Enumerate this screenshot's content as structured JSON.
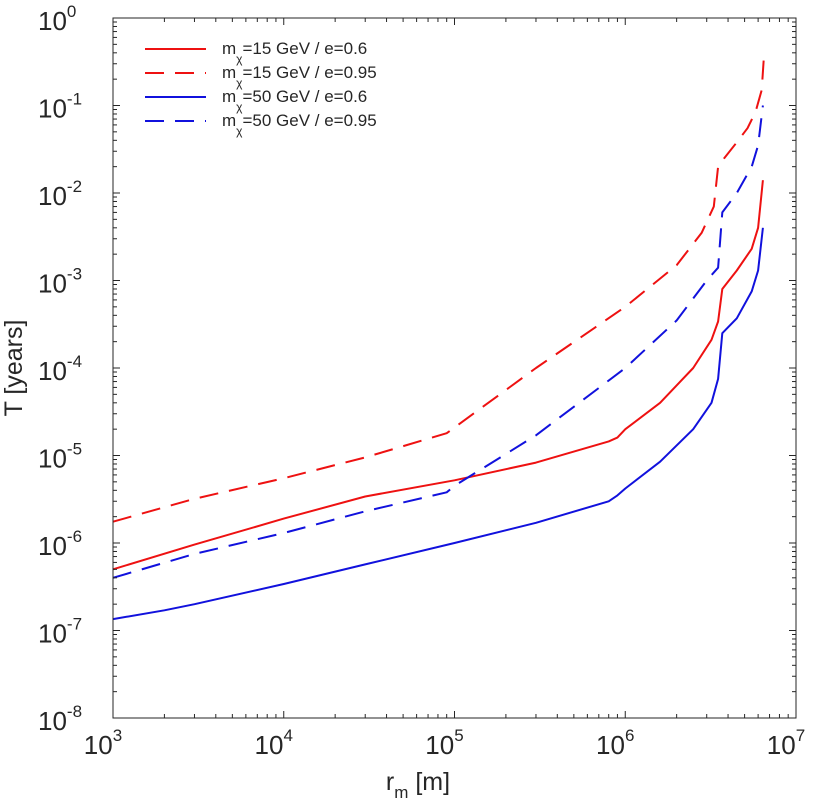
{
  "chart_data": {
    "type": "line",
    "title": "",
    "xlabel": "r",
    "xlabel_sub": "m",
    "xlabel_unit": "[m]",
    "ylabel": "T [years]",
    "xscale": "log",
    "yscale": "log",
    "xlim": [
      1000,
      10000000
    ],
    "ylim": [
      1e-08,
      1
    ],
    "x_ticks": [
      {
        "base": "10",
        "exp": "3",
        "value": 1000
      },
      {
        "base": "10",
        "exp": "4",
        "value": 10000
      },
      {
        "base": "10",
        "exp": "5",
        "value": 100000
      },
      {
        "base": "10",
        "exp": "6",
        "value": 1000000
      },
      {
        "base": "10",
        "exp": "7",
        "value": 10000000
      }
    ],
    "y_ticks": [
      {
        "base": "10",
        "exp": "0",
        "value": 1
      },
      {
        "base": "10",
        "exp": "-1",
        "value": 0.1
      },
      {
        "base": "10",
        "exp": "-2",
        "value": 0.01
      },
      {
        "base": "10",
        "exp": "-3",
        "value": 0.001
      },
      {
        "base": "10",
        "exp": "-4",
        "value": 0.0001
      },
      {
        "base": "10",
        "exp": "-5",
        "value": 1e-05
      },
      {
        "base": "10",
        "exp": "-6",
        "value": 1e-06
      },
      {
        "base": "10",
        "exp": "-7",
        "value": 1e-07
      },
      {
        "base": "10",
        "exp": "-8",
        "value": 1e-08
      }
    ],
    "grid": false,
    "legend_position": "top-left",
    "series": [
      {
        "name": "mχ=15 GeV / e=0.6",
        "legend_prefix": "m",
        "legend_sub": "χ",
        "legend_suffix": "=15 GeV / e=0.6",
        "color": "#ee1111",
        "dash": "solid",
        "x": [
          1000,
          3000,
          10000,
          30000,
          100000,
          300000,
          800000,
          900000,
          1000000,
          1600000,
          2500000,
          3200000,
          3500000,
          3700000,
          4500000,
          5500000,
          6000000,
          6400000
        ],
        "y": [
          5e-07,
          9.6e-07,
          1.9e-06,
          3.4e-06,
          5.2e-06,
          8.3e-06,
          1.45e-05,
          1.6e-05,
          2e-05,
          4e-05,
          0.0001,
          0.00021,
          0.00034,
          0.0008,
          0.0013,
          0.0023,
          0.004,
          0.014
        ]
      },
      {
        "name": "mχ=15 GeV / e=0.95",
        "legend_prefix": "m",
        "legend_sub": "χ",
        "legend_suffix": "=15 GeV / e=0.95",
        "color": "#ee1111",
        "dash": "dashed",
        "x": [
          1000,
          3000,
          10000,
          30000,
          90000,
          300000,
          1000000,
          2000000,
          2800000,
          3300000,
          3500000,
          3800000,
          4500000,
          5200000,
          5800000,
          6300000,
          6500000
        ],
        "y": [
          1.75e-06,
          3.2e-06,
          5.5e-06,
          9.5e-06,
          1.8e-05,
          0.0001,
          0.0005,
          0.0015,
          0.0035,
          0.007,
          0.02,
          0.025,
          0.038,
          0.055,
          0.085,
          0.15,
          0.39
        ]
      },
      {
        "name": "mχ=50 GeV / e=0.6",
        "legend_prefix": "m",
        "legend_sub": "χ",
        "legend_suffix": "=50 GeV / e=0.6",
        "color": "#1111dd",
        "dash": "solid",
        "x": [
          1000,
          2000,
          3000,
          10000,
          30000,
          100000,
          300000,
          800000,
          900000,
          1000000,
          1600000,
          2500000,
          3200000,
          3500000,
          3700000,
          4500000,
          5500000,
          6000000,
          6400000
        ],
        "y": [
          1.35e-07,
          1.7e-07,
          2e-07,
          3.4e-07,
          5.7e-07,
          1e-06,
          1.7e-06,
          3e-06,
          3.5e-06,
          4.2e-06,
          8.5e-06,
          2e-05,
          4e-05,
          7.5e-05,
          0.00025,
          0.00037,
          0.00075,
          0.0013,
          0.004
        ]
      },
      {
        "name": "mχ=50 GeV / e=0.95",
        "legend_prefix": "m",
        "legend_sub": "χ",
        "legend_suffix": "=50 GeV / e=0.95",
        "color": "#1111dd",
        "dash": "dashed",
        "x": [
          1000,
          3000,
          10000,
          30000,
          90000,
          100000,
          300000,
          1000000,
          2000000,
          3000000,
          3500000,
          3700000,
          4500000,
          5500000,
          6000000,
          6400000
        ],
        "y": [
          4e-07,
          7.5e-07,
          1.3e-06,
          2.3e-06,
          3.8e-06,
          4.5e-06,
          1.7e-05,
          0.0001,
          0.00035,
          0.001,
          0.0014,
          0.006,
          0.01,
          0.02,
          0.035,
          0.1
        ]
      }
    ]
  }
}
